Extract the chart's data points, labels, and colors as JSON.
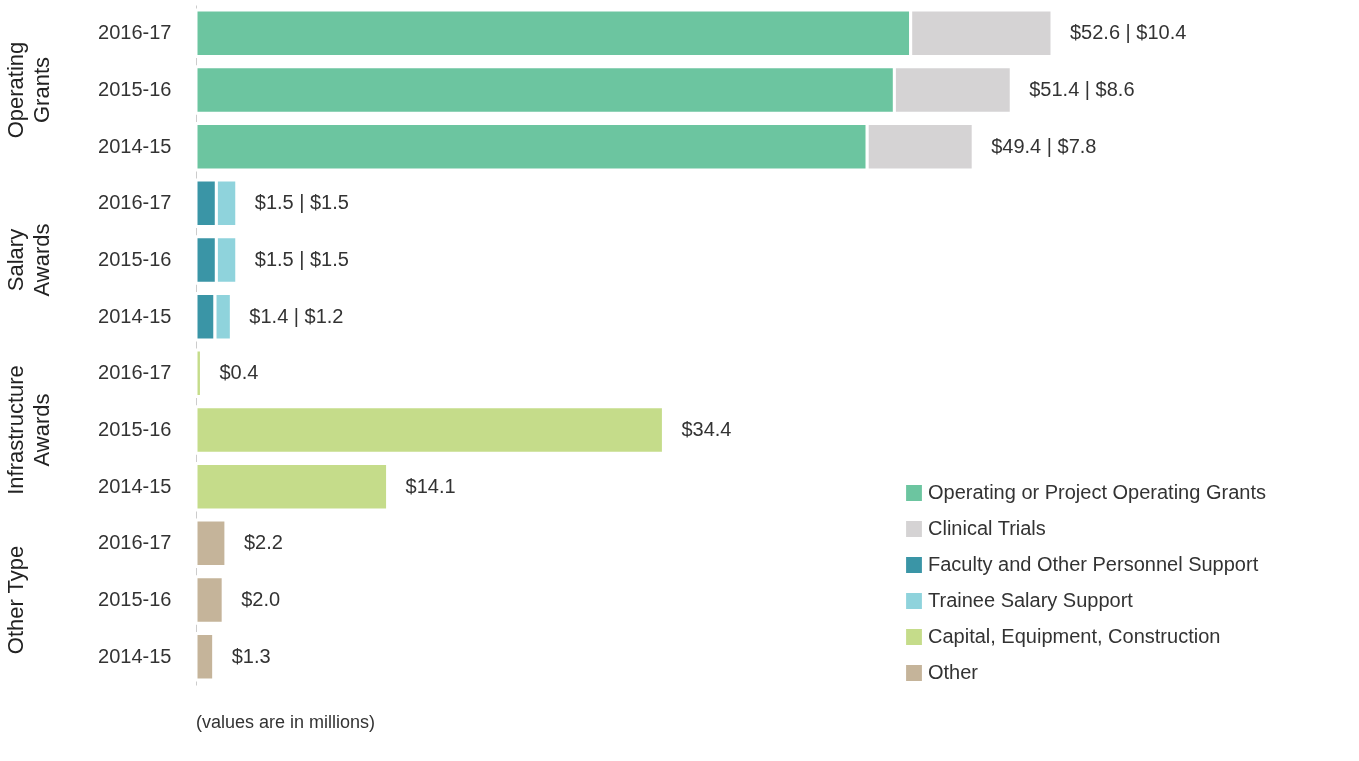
{
  "chart_data": {
    "type": "bar",
    "orientation": "horizontal",
    "stacked": true,
    "categories": [
      "2016-17",
      "2015-16",
      "2014-15",
      "2016-17",
      "2015-16",
      "2014-15",
      "2016-17",
      "2015-16",
      "2014-15",
      "2016-17",
      "2015-16",
      "2014-15"
    ],
    "series": [
      {
        "name": "Operating or Project Operating Grants",
        "color": "#6cc5a0",
        "values": [
          52.6,
          51.4,
          49.4,
          null,
          null,
          null,
          null,
          null,
          null,
          null,
          null,
          null
        ],
        "value_labels": [
          "$52.6  |",
          "$51.4  |",
          "$49.4  |",
          null,
          null,
          null,
          null,
          null,
          null,
          null,
          null,
          null
        ]
      },
      {
        "name": "Clinical Trials",
        "color": "#d5d3d4",
        "values": [
          10.4,
          8.6,
          7.8,
          null,
          null,
          null,
          null,
          null,
          null,
          null,
          null,
          null
        ],
        "value_labels": [
          "$10.4",
          "$8.6",
          "$7.8",
          null,
          null,
          null,
          null,
          null,
          null,
          null,
          null,
          null
        ]
      },
      {
        "name": "Faculty and Other Personnel Support",
        "color": "#3a95a6",
        "values": [
          null,
          null,
          null,
          1.5,
          1.5,
          1.4,
          null,
          null,
          null,
          null,
          null,
          null
        ],
        "value_labels": [
          null,
          null,
          null,
          "$1.5  |",
          "$1.5  |",
          "$1.4  |",
          null,
          null,
          null,
          null,
          null,
          null
        ]
      },
      {
        "name": "Trainee Salary Support",
        "color": "#8fd3dc",
        "values": [
          null,
          null,
          null,
          1.5,
          1.5,
          1.2,
          null,
          null,
          null,
          null,
          null,
          null
        ],
        "value_labels": [
          null,
          null,
          null,
          "$1.5",
          "$1.5",
          "$1.2",
          null,
          null,
          null,
          null,
          null,
          null
        ]
      },
      {
        "name": "Capital, Equipment, Construction",
        "color": "#c5dc8a",
        "values": [
          null,
          null,
          null,
          null,
          null,
          null,
          0.4,
          34.4,
          14.1,
          null,
          null,
          null
        ],
        "value_labels": [
          null,
          null,
          null,
          null,
          null,
          null,
          "$0.4",
          "$34.4",
          "$14.1",
          null,
          null,
          null
        ]
      },
      {
        "name": "Other",
        "color": "#c5b49a",
        "values": [
          null,
          null,
          null,
          null,
          null,
          null,
          null,
          null,
          null,
          2.2,
          2.0,
          1.3
        ],
        "value_labels": [
          null,
          null,
          null,
          null,
          null,
          null,
          null,
          null,
          null,
          "$2.2",
          "$2.0",
          "$1.3"
        ]
      }
    ],
    "annotations": [
      "Operating\nGrants",
      "Salary\nAwards",
      "Infrastructure\nAwards",
      "Other Type",
      "(values are in millions)"
    ],
    "legend": "bottom right",
    "grid": false
  }
}
